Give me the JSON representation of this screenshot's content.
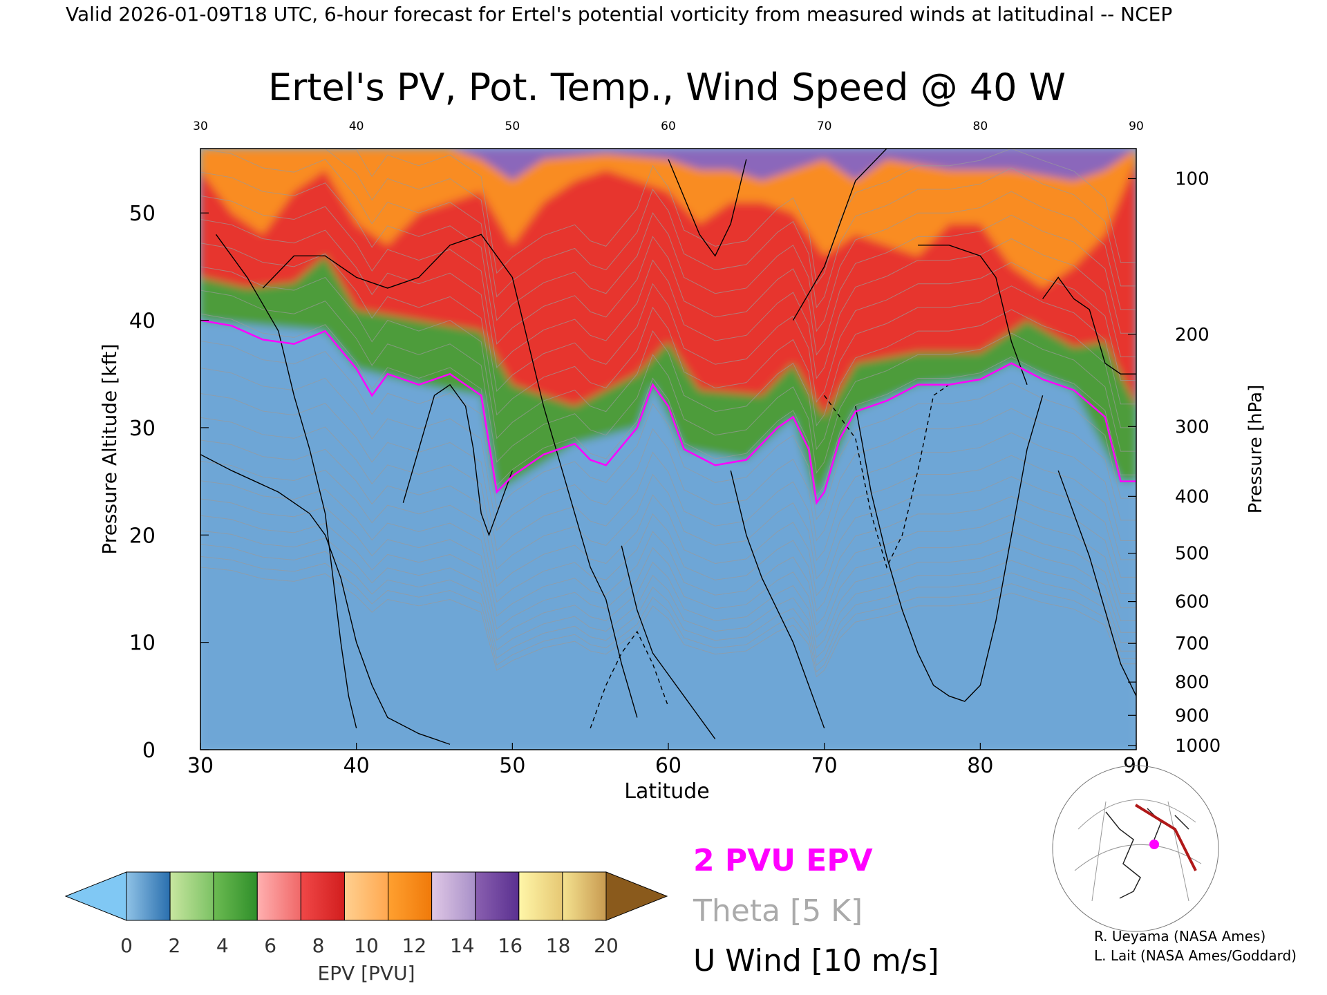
{
  "header": {
    "valid_line": "Valid 2026-01-09T18 UTC, 6-hour forecast for Ertel's potential vorticity from measured winds at latitudinal -- NCEP"
  },
  "chart_data": {
    "type": "heatmap",
    "title": "Ertel's PV, Pot. Temp., Wind Speed @ 40 W",
    "xlabel": "Latitude",
    "ylabel": "Pressure Altitude [kft]",
    "y2label": "Pressure [hPa]",
    "xlim": [
      30,
      90
    ],
    "ylim": [
      0,
      56
    ],
    "x_ticks": [
      "30",
      "40",
      "50",
      "60",
      "70",
      "80",
      "90"
    ],
    "y_ticks": [
      "0",
      "10",
      "20",
      "30",
      "40",
      "50"
    ],
    "pressure_ticks": [
      {
        "label": "1000",
        "kft": 0.4
      },
      {
        "label": "900",
        "kft": 3.2
      },
      {
        "label": "800",
        "kft": 6.3
      },
      {
        "label": "700",
        "kft": 9.9
      },
      {
        "label": "600",
        "kft": 13.8
      },
      {
        "label": "500",
        "kft": 18.3
      },
      {
        "label": "400",
        "kft": 23.6
      },
      {
        "label": "300",
        "kft": 30.1
      },
      {
        "label": "200",
        "kft": 38.7
      },
      {
        "label": "100",
        "kft": 53.2
      }
    ],
    "tropopause_2pvu_kft": [
      [
        30,
        40
      ],
      [
        32,
        39.5
      ],
      [
        34,
        38.2
      ],
      [
        36,
        37.8
      ],
      [
        38,
        39
      ],
      [
        40,
        35.5
      ],
      [
        41,
        33
      ],
      [
        42,
        35
      ],
      [
        44,
        34
      ],
      [
        46,
        35
      ],
      [
        48,
        33
      ],
      [
        49,
        24
      ],
      [
        50,
        25.5
      ],
      [
        52,
        27.5
      ],
      [
        54,
        28.5
      ],
      [
        55,
        27
      ],
      [
        56,
        26.5
      ],
      [
        58,
        30
      ],
      [
        59,
        34
      ],
      [
        60,
        32
      ],
      [
        61,
        28
      ],
      [
        63,
        26.5
      ],
      [
        65,
        27
      ],
      [
        67,
        30
      ],
      [
        68,
        31
      ],
      [
        69,
        28
      ],
      [
        69.5,
        23
      ],
      [
        70,
        24
      ],
      [
        71,
        29
      ],
      [
        72,
        31.5
      ],
      [
        74,
        32.5
      ],
      [
        76,
        34
      ],
      [
        78,
        34
      ],
      [
        80,
        34.5
      ],
      [
        82,
        36
      ],
      [
        84,
        34.5
      ],
      [
        86,
        33.5
      ],
      [
        88,
        31
      ],
      [
        89,
        25
      ],
      [
        90,
        25
      ]
    ],
    "pv_bands": [
      {
        "label": "0-2",
        "fill": "#6ea6d6",
        "top_kft": [
          [
            30,
            40
          ],
          [
            38,
            39
          ],
          [
            40,
            35.5
          ],
          [
            44,
            34
          ],
          [
            48,
            33
          ],
          [
            49,
            24
          ],
          [
            54,
            28.5
          ],
          [
            58,
            30
          ],
          [
            59,
            34
          ],
          [
            61,
            28
          ],
          [
            65,
            27
          ],
          [
            68,
            31
          ],
          [
            69.5,
            23
          ],
          [
            72,
            31.5
          ],
          [
            76,
            34
          ],
          [
            80,
            34.5
          ],
          [
            82,
            36
          ],
          [
            86,
            33.5
          ],
          [
            89,
            25
          ],
          [
            90,
            25
          ]
        ]
      },
      {
        "label": "2-6",
        "fill": "#46a23c",
        "top_kft": [
          [
            30,
            44
          ],
          [
            33,
            43
          ],
          [
            36,
            43.5
          ],
          [
            38,
            46
          ],
          [
            40,
            41
          ],
          [
            44,
            40
          ],
          [
            48,
            39
          ],
          [
            50,
            34
          ],
          [
            54,
            32
          ],
          [
            58,
            35
          ],
          [
            60,
            38
          ],
          [
            62,
            33.5
          ],
          [
            66,
            33
          ],
          [
            68,
            36
          ],
          [
            70,
            31
          ],
          [
            72,
            36
          ],
          [
            76,
            37
          ],
          [
            80,
            37
          ],
          [
            83,
            40
          ],
          [
            86,
            37.5
          ],
          [
            88,
            38
          ],
          [
            90,
            32
          ]
        ]
      },
      {
        "label": "6-10",
        "fill": "#e62f2f",
        "top_kft": [
          [
            30,
            54
          ],
          [
            32,
            50
          ],
          [
            34,
            48
          ],
          [
            36,
            52
          ],
          [
            38,
            54
          ],
          [
            40,
            49
          ],
          [
            42,
            47
          ],
          [
            44,
            50
          ],
          [
            46,
            51
          ],
          [
            48,
            52
          ],
          [
            50,
            47
          ],
          [
            52,
            51
          ],
          [
            54,
            53
          ],
          [
            56,
            54
          ],
          [
            58,
            53
          ],
          [
            60,
            52
          ],
          [
            62,
            49
          ],
          [
            64,
            51
          ],
          [
            66,
            51
          ],
          [
            68,
            50
          ],
          [
            70,
            46
          ],
          [
            72,
            48
          ],
          [
            74,
            47
          ],
          [
            76,
            46
          ],
          [
            78,
            49
          ],
          [
            80,
            49
          ],
          [
            82,
            45
          ],
          [
            84,
            43
          ],
          [
            86,
            45
          ],
          [
            88,
            48
          ],
          [
            90,
            55
          ]
        ]
      },
      {
        "label": "10-14",
        "fill": "#ff8e1c",
        "top_kft": [
          [
            30,
            56
          ],
          [
            46,
            56
          ],
          [
            48,
            55
          ],
          [
            50,
            53
          ],
          [
            52,
            55
          ],
          [
            56,
            55.5
          ],
          [
            60,
            55
          ],
          [
            62,
            54
          ],
          [
            64,
            54
          ],
          [
            66,
            53
          ],
          [
            68,
            54
          ],
          [
            70,
            55
          ],
          [
            72,
            53
          ],
          [
            74,
            55
          ],
          [
            78,
            54
          ],
          [
            82,
            54
          ],
          [
            86,
            53
          ],
          [
            88,
            54
          ],
          [
            90,
            56
          ]
        ]
      },
      {
        "label": "14-18",
        "fill": "#8b62b8",
        "top_kft": [
          [
            30,
            56
          ],
          [
            90,
            56
          ]
        ]
      }
    ],
    "legend_labels": [
      "2 PVU EPV",
      "Theta [5 K]",
      "U Wind [10 m/s]"
    ],
    "legend_colors": [
      "#ff00ff",
      "#aaaaaa",
      "#000000"
    ],
    "colorbar": {
      "label": "EPV [PVU]",
      "tick_labels": [
        "0",
        "2",
        "4",
        "6",
        "8",
        "10",
        "12",
        "14",
        "16",
        "18",
        "20"
      ],
      "segments": [
        [
          "#8fc2e6",
          "#2a6fae"
        ],
        [
          "#c8e6a0",
          "#7cc264"
        ],
        [
          "#6cbb52",
          "#2f8f2a"
        ],
        [
          "#ffb0b0",
          "#f06868"
        ],
        [
          "#f04848",
          "#d21e1e"
        ],
        [
          "#ffd090",
          "#ffa850"
        ],
        [
          "#ffa030",
          "#f07a0a"
        ],
        [
          "#e0c8e6",
          "#a890c8"
        ],
        [
          "#8a60b0",
          "#5a3090"
        ],
        [
          "#fff6a8",
          "#e6c874"
        ],
        [
          "#f4e290",
          "#c89a50"
        ]
      ],
      "under_color": "#80c8f4",
      "over_color": "#8a5a1c"
    }
  },
  "credits": [
    "R. Ueyama (NASA Ames)",
    "L. Lait (NASA Ames/Goddard)"
  ]
}
